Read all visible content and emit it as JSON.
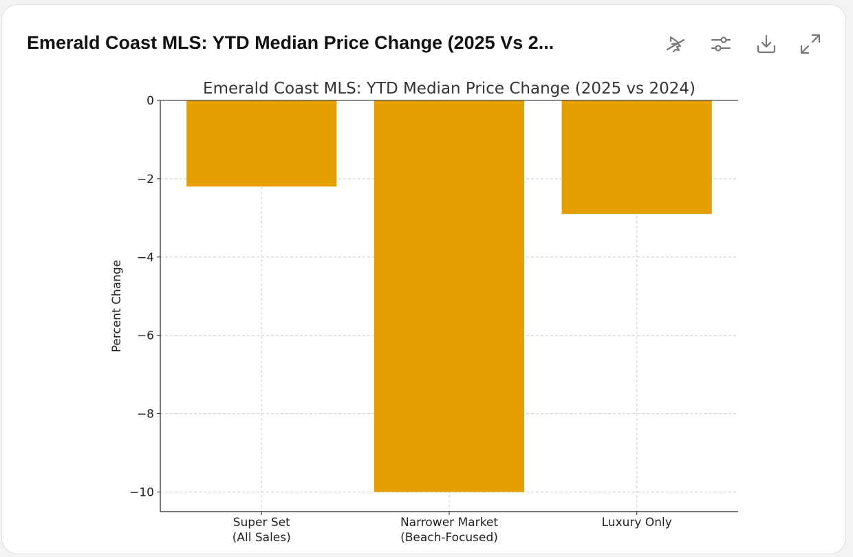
{
  "header": {
    "title": "Emerald Coast MLS: YTD Median Price Change (2025 Vs 2...",
    "icons": [
      "hide-interactive-icon",
      "settings-sliders-icon",
      "download-icon",
      "expand-icon"
    ]
  },
  "chart_data": {
    "type": "bar",
    "title": "Emerald Coast MLS: YTD Median Price Change (2025 vs 2024)",
    "categories": [
      "Super Set\n(All Sales)",
      "Narrower Market\n(Beach-Focused)",
      "Luxury Only"
    ],
    "values": [
      -2.2,
      -10.0,
      -2.9
    ],
    "xlabel": "",
    "ylabel": "Percent Change",
    "ylim": [
      -10.5,
      0
    ],
    "yticks": [
      0,
      -2,
      -4,
      -6,
      -8,
      -10
    ],
    "ytick_labels": [
      "0",
      "−2",
      "−4",
      "−6",
      "−8",
      "−10"
    ],
    "grid": true,
    "bar_color": "#E69F00"
  }
}
